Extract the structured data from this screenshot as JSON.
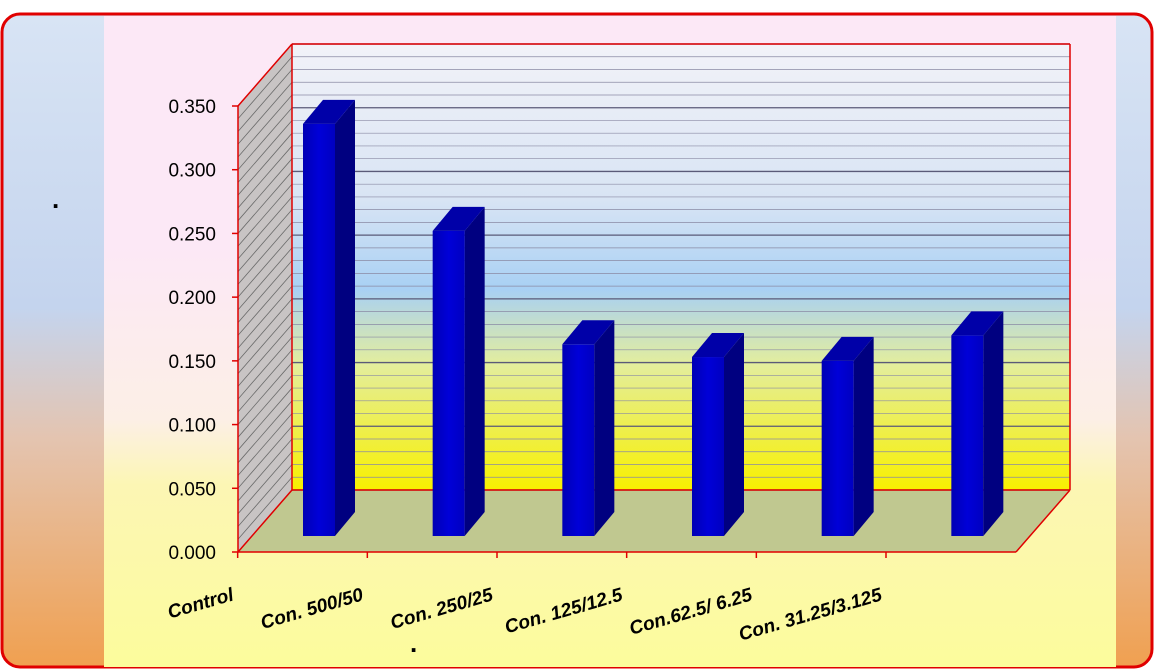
{
  "chart_data": {
    "type": "bar",
    "title": "",
    "xlabel": "",
    "ylabel": "",
    "categories": [
      "Control",
      "Con. 500/50",
      "Con. 250/25",
      "Con. 125/12.5",
      "Con.62.5/ 6.25",
      "Con. 31.25/3.125"
    ],
    "series": [
      {
        "values": [
          0.336,
          0.252,
          0.163,
          0.153,
          0.15,
          0.17
        ]
      }
    ],
    "ylim": [
      0,
      0.35
    ],
    "y_ticks": [
      "0.000",
      "0.050",
      "0.100",
      "0.150",
      "0.200",
      "0.250",
      "0.300",
      "0.350"
    ],
    "grid": true,
    "bar_color": "#0000c8",
    "axis_color": "#e00000",
    "border_color": "#e00000",
    "stray_marks": [
      ".",
      "."
    ]
  }
}
